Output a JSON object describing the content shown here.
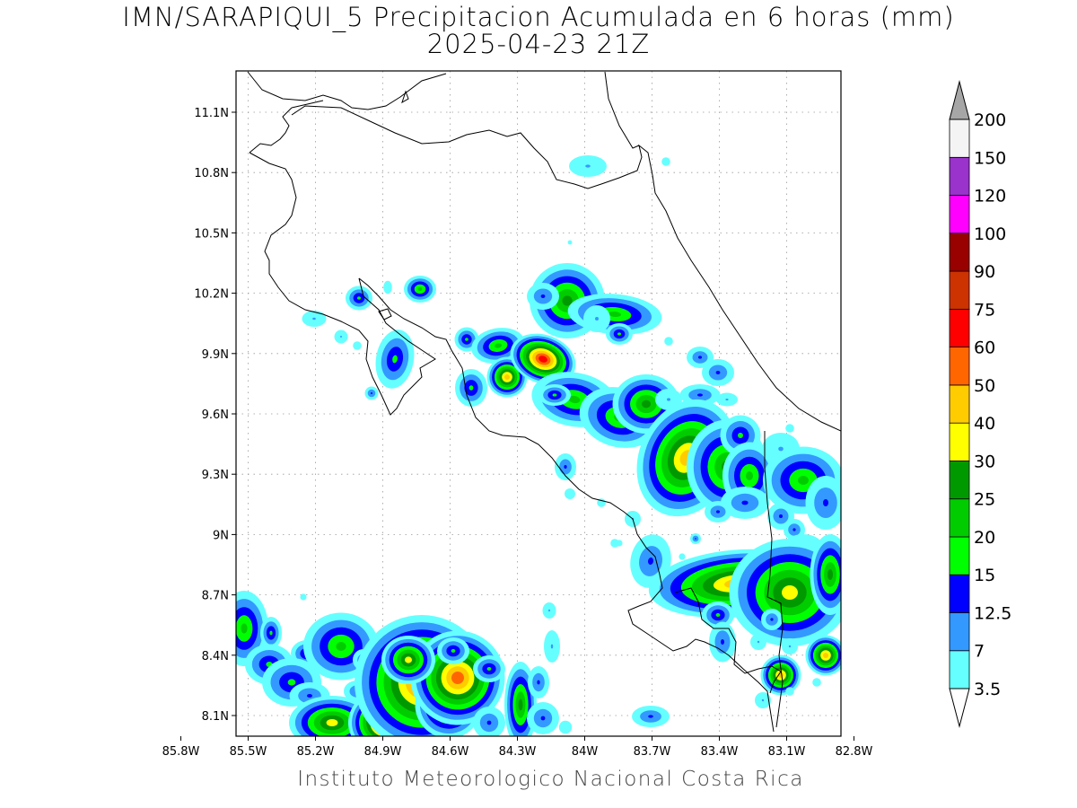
{
  "title": {
    "line1": "IMN/SARAPIQUI_5 Precipitacion Acumulada en 6 horas (mm)",
    "line2": "2025-04-23 21Z"
  },
  "footer": "Instituto Meteorologico Nacional Costa Rica",
  "axes": {
    "lat_ticks": [
      "11.1N",
      "10.8N",
      "10.5N",
      "10.2N",
      "9.9N",
      "9.6N",
      "9.3N",
      "9N",
      "8.7N",
      "8.4N",
      "8.1N"
    ],
    "lat_values": [
      11.1,
      10.8,
      10.5,
      10.2,
      9.9,
      9.6,
      9.3,
      9.0,
      8.7,
      8.4,
      8.1
    ],
    "lon_ticks": [
      "85.8W",
      "85.5W",
      "85.2W",
      "84.9W",
      "84.6W",
      "84.3W",
      "84W",
      "83.7W",
      "83.4W",
      "83.1W",
      "82.8W"
    ],
    "lon_values": [
      -85.8,
      -85.5,
      -85.2,
      -84.9,
      -84.6,
      -84.3,
      -84.0,
      -83.7,
      -83.4,
      -83.1,
      -82.8
    ],
    "lat_range": [
      8.0,
      11.3
    ],
    "lon_range": [
      -86.0,
      -83.0
    ],
    "grid": true
  },
  "colorbar": {
    "labels": [
      "3.5",
      "7",
      "12.5",
      "15",
      "20",
      "25",
      "30",
      "40",
      "50",
      "60",
      "75",
      "90",
      "100",
      "120",
      "150",
      "200"
    ],
    "colors": [
      "#66ffff",
      "#3399ff",
      "#0000ff",
      "#00ff00",
      "#00cc00",
      "#009900",
      "#ffff00",
      "#ffcc00",
      "#ff6600",
      "#ff0000",
      "#cc3300",
      "#990000",
      "#ff00ff",
      "#9933cc",
      "#f4f4f4"
    ],
    "over_color": "#a6a6a6",
    "under_color": "#ffffff"
  }
}
